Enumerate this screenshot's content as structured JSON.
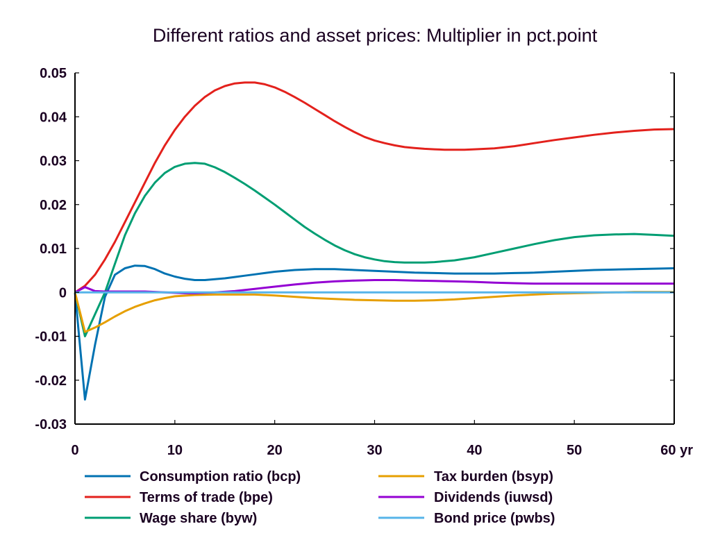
{
  "chart_data": {
    "type": "line",
    "title": "Different ratios and asset prices: Multiplier in pct.point",
    "xlabel": "",
    "ylabel": "",
    "x_unit_suffix": "yr",
    "xlim": [
      0,
      60
    ],
    "ylim": [
      -0.03,
      0.05
    ],
    "xticks": [
      0,
      10,
      20,
      30,
      40,
      50,
      60
    ],
    "xtick_labels": [
      "0",
      "10",
      "20",
      "30",
      "40",
      "50",
      "60 yr"
    ],
    "yticks": [
      -0.03,
      -0.02,
      -0.01,
      0,
      0.01,
      0.02,
      0.03,
      0.04,
      0.05
    ],
    "ytick_labels": [
      "-0.03",
      "-0.02",
      "-0.01",
      "0",
      "0.01",
      "0.02",
      "0.03",
      "0.04",
      "0.05"
    ],
    "grid": false,
    "zero_line": true,
    "legend_position": "bottom",
    "series": [
      {
        "name": "Consumption ratio (bcp)",
        "color": "#0072b2",
        "x": [
          0,
          1,
          2,
          3,
          4,
          5,
          6,
          7,
          8,
          9,
          10,
          11,
          12,
          13,
          14,
          15,
          16,
          17,
          18,
          19,
          20,
          21,
          22,
          23,
          24,
          25,
          26,
          27,
          28,
          29,
          30,
          32,
          34,
          36,
          38,
          40,
          42,
          44,
          46,
          48,
          50,
          52,
          54,
          56,
          58,
          60
        ],
        "values": [
          0,
          -0.0244,
          -0.012,
          -0.001,
          0.004,
          0.0055,
          0.0061,
          0.006,
          0.0053,
          0.0043,
          0.0036,
          0.0031,
          0.0028,
          0.0028,
          0.003,
          0.0032,
          0.0035,
          0.0038,
          0.0041,
          0.0044,
          0.0047,
          0.0049,
          0.0051,
          0.0052,
          0.0053,
          0.0053,
          0.0053,
          0.0052,
          0.0051,
          0.005,
          0.0049,
          0.0047,
          0.0045,
          0.0044,
          0.0043,
          0.0043,
          0.0043,
          0.0044,
          0.0045,
          0.0047,
          0.0049,
          0.0051,
          0.0052,
          0.0053,
          0.0054,
          0.0055
        ]
      },
      {
        "name": "Terms of trade (bpe)",
        "color": "#e3211c",
        "x": [
          0,
          1,
          2,
          3,
          4,
          5,
          6,
          7,
          8,
          9,
          10,
          11,
          12,
          13,
          14,
          15,
          16,
          17,
          18,
          19,
          20,
          21,
          22,
          23,
          24,
          25,
          26,
          27,
          28,
          29,
          30,
          31,
          32,
          33,
          34,
          35,
          36,
          37,
          38,
          39,
          40,
          42,
          44,
          46,
          48,
          50,
          52,
          54,
          56,
          58,
          60
        ],
        "values": [
          0,
          0.0015,
          0.004,
          0.0075,
          0.0115,
          0.016,
          0.0205,
          0.025,
          0.0295,
          0.0335,
          0.037,
          0.04,
          0.0425,
          0.0445,
          0.046,
          0.047,
          0.0476,
          0.0478,
          0.0478,
          0.0474,
          0.0467,
          0.0457,
          0.0445,
          0.0432,
          0.0418,
          0.0404,
          0.039,
          0.0377,
          0.0365,
          0.0354,
          0.0346,
          0.034,
          0.0335,
          0.0331,
          0.0329,
          0.0327,
          0.0326,
          0.0325,
          0.0325,
          0.0325,
          0.0326,
          0.0328,
          0.0333,
          0.034,
          0.0347,
          0.0353,
          0.0359,
          0.0364,
          0.0368,
          0.0371,
          0.0372
        ]
      },
      {
        "name": "Wage share (byw)",
        "color": "#009e73",
        "x": [
          0,
          1,
          2,
          3,
          4,
          5,
          6,
          7,
          8,
          9,
          10,
          11,
          12,
          13,
          14,
          15,
          16,
          17,
          18,
          19,
          20,
          21,
          22,
          23,
          24,
          25,
          26,
          27,
          28,
          29,
          30,
          31,
          32,
          33,
          34,
          35,
          36,
          38,
          40,
          42,
          44,
          46,
          48,
          50,
          52,
          54,
          56,
          58,
          60
        ],
        "values": [
          0,
          -0.01,
          -0.005,
          0.0,
          0.0065,
          0.013,
          0.018,
          0.022,
          0.025,
          0.0272,
          0.0286,
          0.0293,
          0.0295,
          0.0293,
          0.0285,
          0.0274,
          0.0261,
          0.0247,
          0.0232,
          0.0216,
          0.02,
          0.0183,
          0.0166,
          0.0149,
          0.0134,
          0.012,
          0.0107,
          0.0096,
          0.0087,
          0.008,
          0.0075,
          0.0071,
          0.0069,
          0.0068,
          0.0068,
          0.0068,
          0.0069,
          0.0073,
          0.008,
          0.009,
          0.01,
          0.011,
          0.0119,
          0.0126,
          0.013,
          0.0132,
          0.0133,
          0.0131,
          0.0129
        ]
      },
      {
        "name": "Tax burden (bsyp)",
        "color": "#e69f00",
        "x": [
          0,
          1,
          2,
          3,
          4,
          5,
          6,
          7,
          8,
          9,
          10,
          12,
          14,
          16,
          18,
          20,
          22,
          24,
          26,
          28,
          30,
          32,
          34,
          36,
          38,
          40,
          42,
          44,
          46,
          48,
          50,
          52,
          54,
          56,
          58,
          60
        ],
        "values": [
          0,
          -0.009,
          -0.008,
          -0.0068,
          -0.0055,
          -0.0043,
          -0.0033,
          -0.0025,
          -0.0018,
          -0.0013,
          -0.0009,
          -0.0006,
          -0.0005,
          -0.0005,
          -0.0005,
          -0.0007,
          -0.001,
          -0.0013,
          -0.0015,
          -0.0017,
          -0.0018,
          -0.0019,
          -0.0019,
          -0.0018,
          -0.0016,
          -0.0013,
          -0.001,
          -0.0007,
          -0.0005,
          -0.0003,
          -0.0002,
          -0.0001,
          0.0,
          0.0001,
          0.0001,
          0.0001
        ]
      },
      {
        "name": "Dividends (iuwsd)",
        "color": "#9400d3",
        "x": [
          0,
          1,
          2,
          3,
          4,
          5,
          6,
          7,
          8,
          9,
          10,
          11,
          12,
          13,
          14,
          16,
          18,
          20,
          22,
          24,
          26,
          28,
          30,
          32,
          34,
          36,
          38,
          40,
          42,
          44,
          46,
          48,
          50,
          55,
          60
        ],
        "values": [
          0,
          0.0012,
          0.0003,
          0.0002,
          0.0002,
          0.0002,
          0.0002,
          0.0002,
          0.0001,
          0.0,
          -0.0001,
          -0.0002,
          -0.0002,
          -0.0001,
          0.0,
          0.0003,
          0.0008,
          0.0013,
          0.0018,
          0.0022,
          0.0025,
          0.0027,
          0.0028,
          0.0028,
          0.0027,
          0.0026,
          0.0025,
          0.0024,
          0.0022,
          0.0021,
          0.002,
          0.002,
          0.002,
          0.002,
          0.002
        ]
      },
      {
        "name": "Bond price (pwbs)",
        "color": "#56b4e9",
        "x": [
          0,
          10,
          20,
          30,
          40,
          50,
          60
        ],
        "values": [
          0,
          0,
          0,
          0,
          0,
          0,
          0
        ]
      }
    ]
  }
}
